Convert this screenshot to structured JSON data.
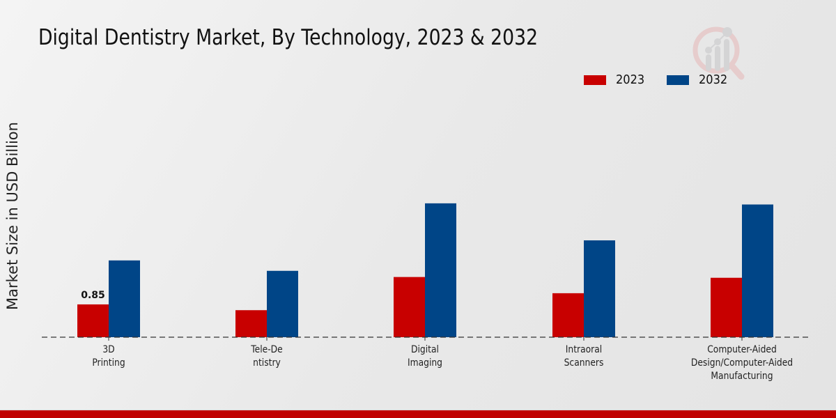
{
  "header": {
    "title": "Digital Dentistry Market, By Technology, 2023 & 2032"
  },
  "colors": {
    "series_2023": "#c80000",
    "series_2032": "#004587",
    "footer_bar": "#c00000"
  },
  "chart_data": {
    "type": "bar",
    "title": "Digital Dentistry Market, By Technology, 2023 & 2032",
    "xlabel": "",
    "ylabel": "Market Size in USD Billion",
    "categories": [
      "3D\nPrinting",
      "Tele-De\nntistry",
      "Digital\nImaging",
      "Intraoral\nScanners",
      "Computer-Aided\nDesign/Computer-Aided\nManufacturing"
    ],
    "series": [
      {
        "name": "2023",
        "color": "#c80000",
        "values": [
          0.85,
          0.7,
          1.56,
          1.14,
          1.54
        ]
      },
      {
        "name": "2032",
        "color": "#004587",
        "values": [
          1.99,
          1.72,
          3.47,
          2.51,
          3.44
        ]
      }
    ],
    "data_labels": [
      {
        "series": "2023",
        "category_index": 0,
        "text": "0.85"
      }
    ],
    "ylim": [
      0,
      5.4
    ],
    "grid": false,
    "y_ticks_visible": false,
    "baseline_style": "dashed",
    "legend": {
      "position": "top-right",
      "entries": [
        "2023",
        "2032"
      ]
    }
  }
}
